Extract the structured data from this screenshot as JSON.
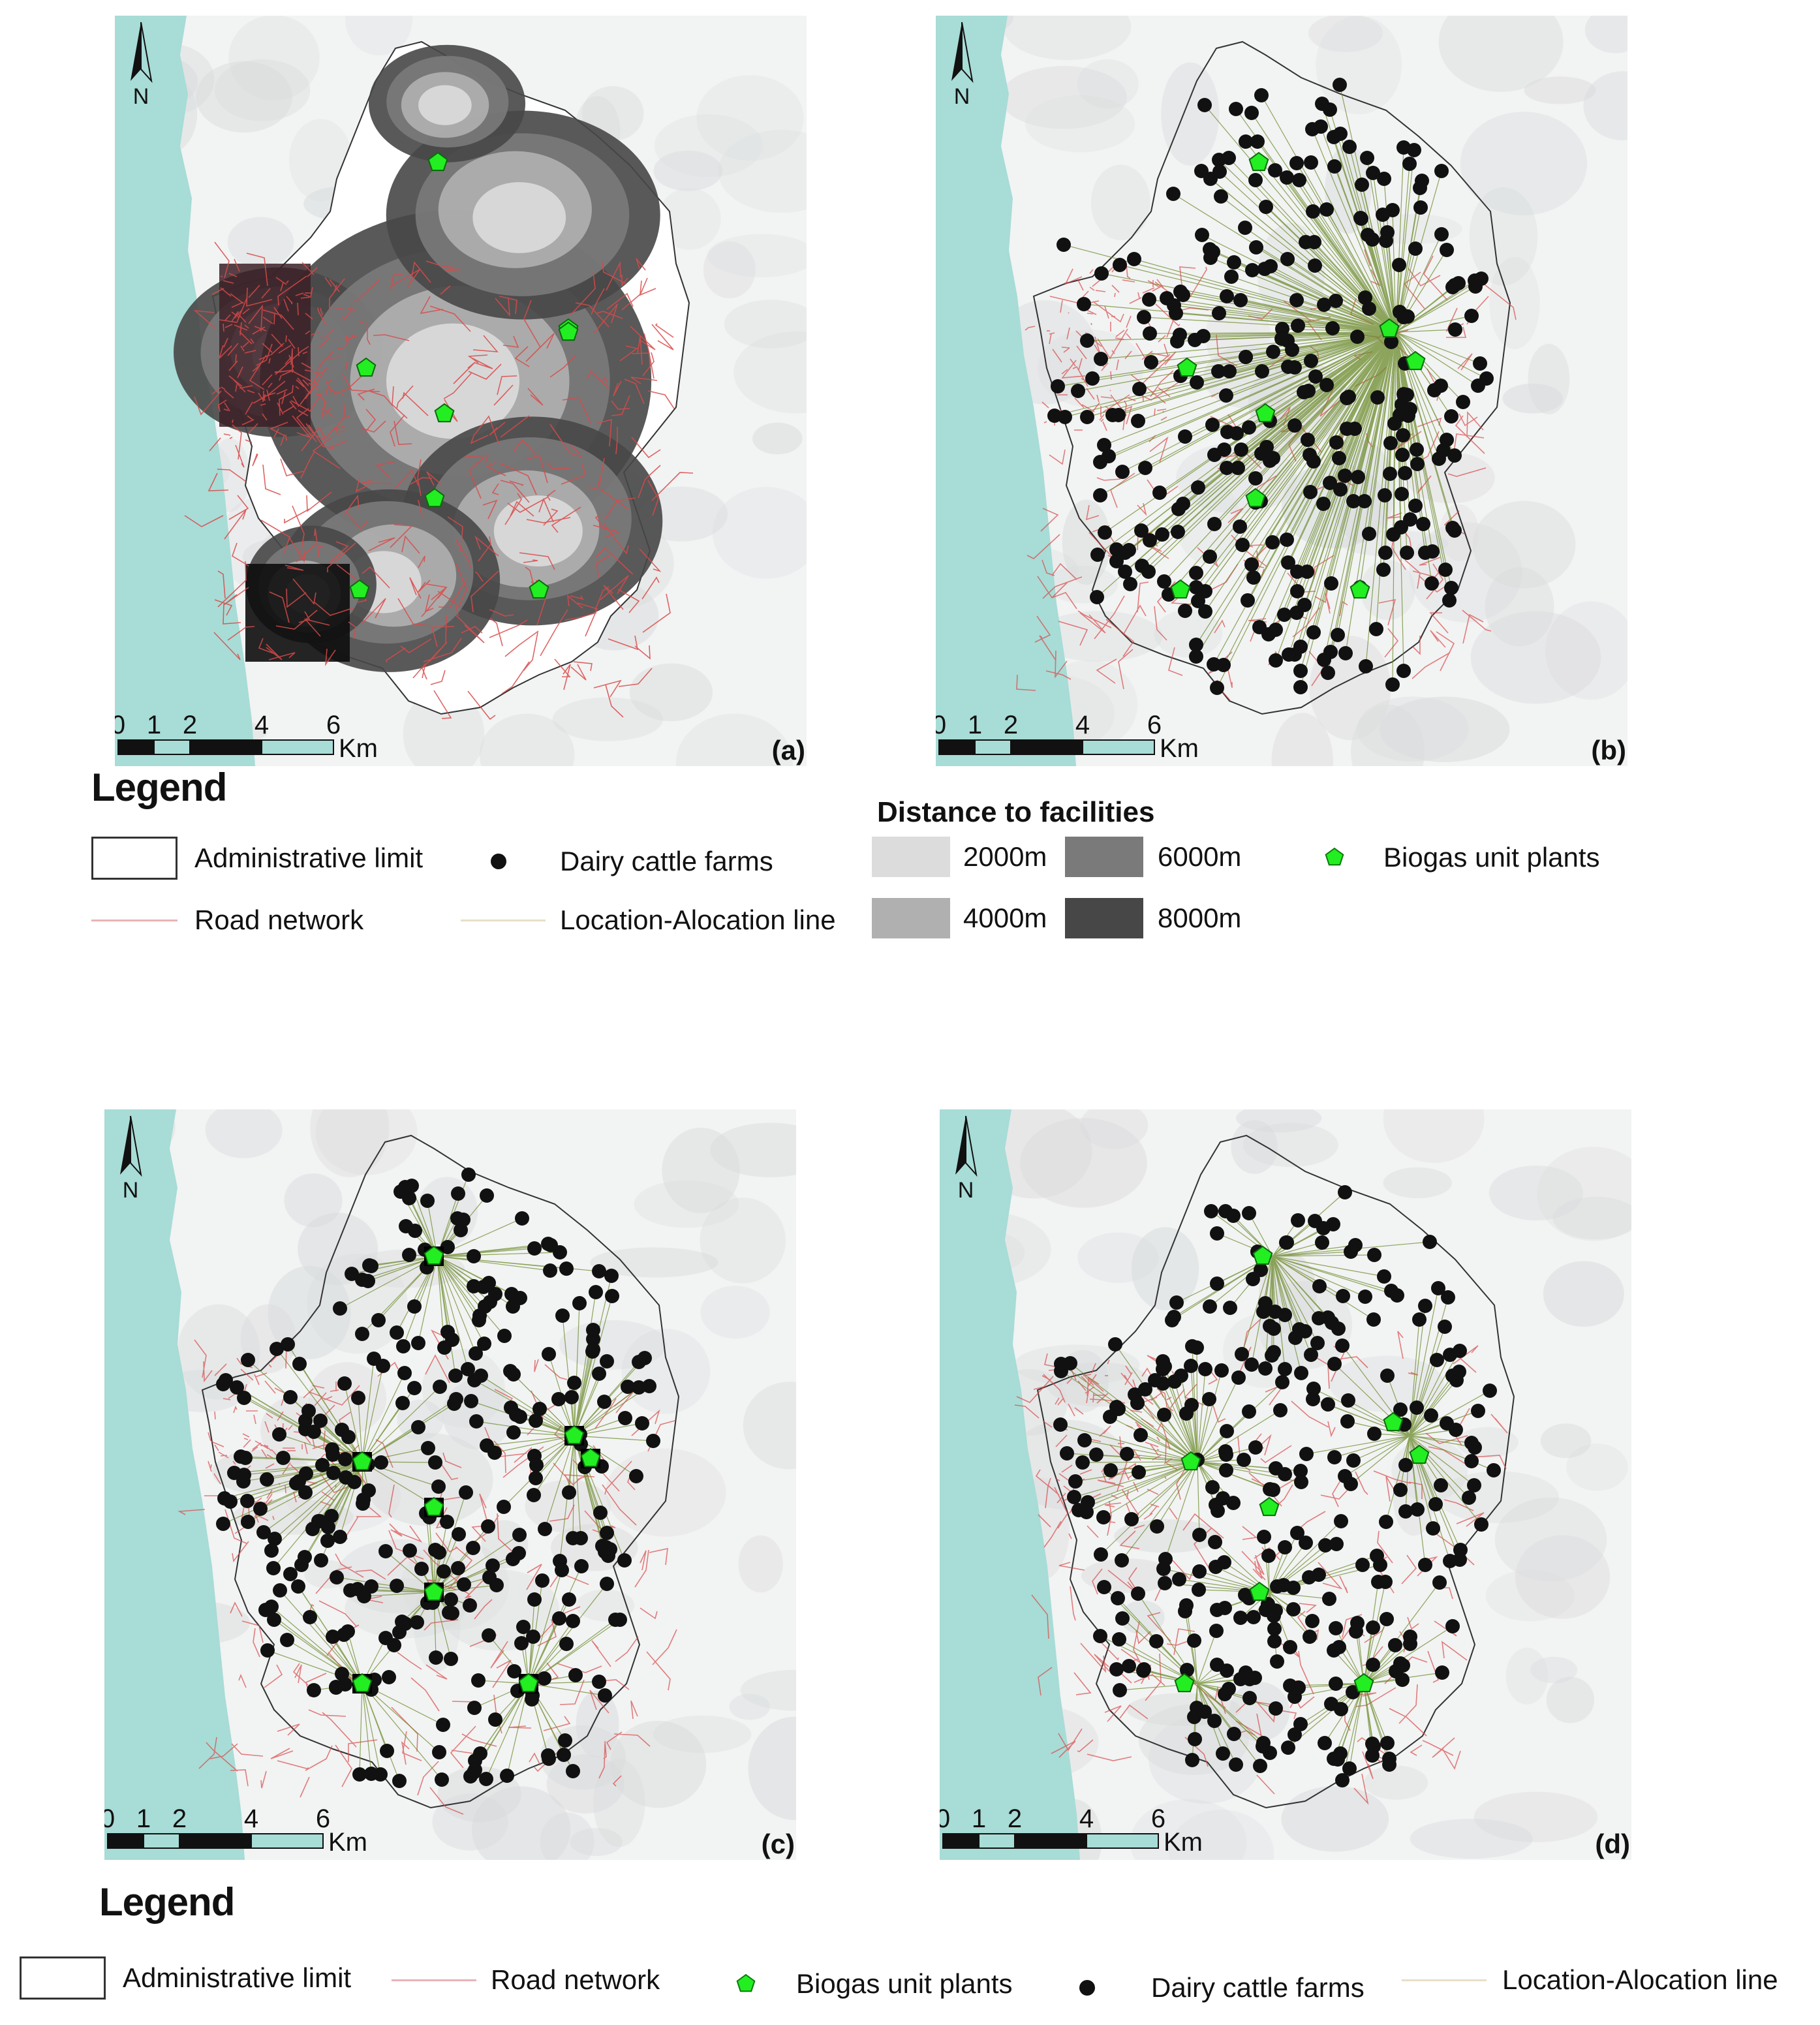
{
  "panels": [
    {
      "id": "a",
      "label": "(a)",
      "mode": "service"
    },
    {
      "id": "b",
      "label": "(b)",
      "mode": "single"
    },
    {
      "id": "c",
      "label": "(c)",
      "mode": "multi-square"
    },
    {
      "id": "d",
      "label": "(d)",
      "mode": "multi"
    }
  ],
  "north_label": "N",
  "scale_bar": {
    "ticks": [
      "0",
      "1",
      "2",
      "4",
      "6"
    ],
    "unit": "Km"
  },
  "legend_top": {
    "title": "Legend",
    "admin": "Administrative limit",
    "road": "Road network",
    "farms": "Dairy cattle farms",
    "la_line": "Location-Alocation line",
    "distance_title": "Distance to facilities",
    "d2000": "2000m",
    "d4000": "4000m",
    "d6000": "6000m",
    "d8000": "8000m",
    "biogas": "Biogas unit plants"
  },
  "legend_bottom": {
    "title": "Legend",
    "admin": "Administrative limit",
    "road": "Road network",
    "biogas": "Biogas unit plants",
    "farms": "Dairy cattle farms",
    "la_line": "Location-Alocation line"
  },
  "colors": {
    "sea": "#a8dcd6",
    "biogas": "#22ee22",
    "farm": "#111111",
    "road": "#d94a4a",
    "la_line": "#6b8a2a",
    "dist_2000": "#dcdcdc",
    "dist_4000": "#b0b0b0",
    "dist_6000": "#7a7a7a",
    "dist_8000": "#474747"
  }
}
